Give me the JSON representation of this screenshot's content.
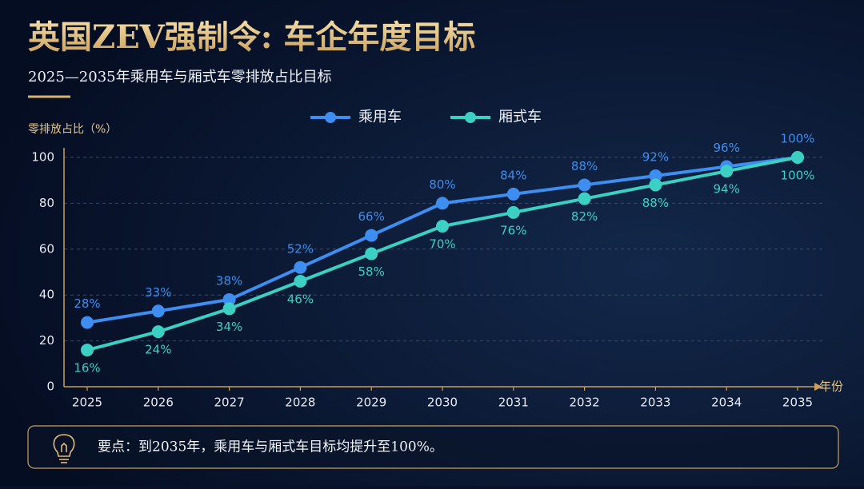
{
  "chart_data": {
    "type": "line",
    "title": "英国ZEV强制令: 车企年度目标",
    "subtitle": "2025—2035年乘用车与厢式车零排放占比目标",
    "y_label": "零排放占比（%）",
    "x_label": "年份",
    "categories": [
      "2025",
      "2026",
      "2027",
      "2028",
      "2029",
      "2030",
      "2031",
      "2032",
      "2033",
      "2034",
      "2035"
    ],
    "series": [
      {
        "name": "乘用车",
        "color": "#3d8ef0",
        "values": [
          28,
          33,
          38,
          52,
          66,
          80,
          84,
          88,
          92,
          96,
          100
        ],
        "value_labels": [
          "28%",
          "33%",
          "38%",
          "52%",
          "66%",
          "80%",
          "84%",
          "88%",
          "92%",
          "96%",
          "100%"
        ]
      },
      {
        "name": "厢式车",
        "color": "#3ccfc4",
        "values": [
          16,
          24,
          34,
          46,
          58,
          70,
          76,
          82,
          88,
          94,
          100
        ],
        "value_labels": [
          "16%",
          "24%",
          "34%",
          "46%",
          "58%",
          "70%",
          "76%",
          "82%",
          "88%",
          "94%",
          "100%"
        ]
      }
    ],
    "ylim": [
      0,
      100
    ],
    "yticks": [
      0,
      20,
      40,
      60,
      80,
      100
    ],
    "grid": true,
    "legend": "top",
    "note": "要点：到2035年，乘用车与厢式车目标均提升至100%。"
  }
}
